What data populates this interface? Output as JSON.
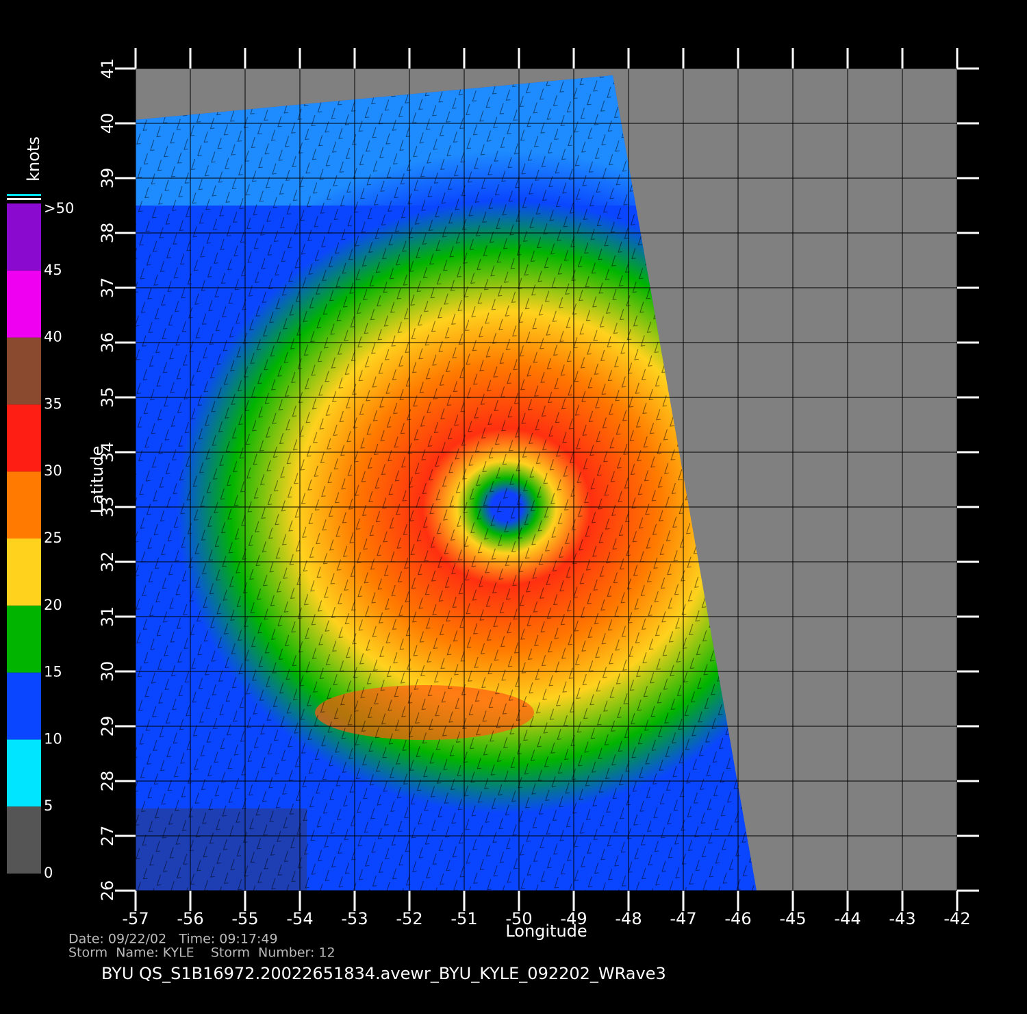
{
  "map": {
    "xlabel": "Longitude",
    "ylabel": "Latitude",
    "xlim": [
      -57,
      -42
    ],
    "ylim": [
      26,
      41
    ],
    "xticks": [
      -57,
      -56,
      -55,
      -54,
      -53,
      -52,
      -51,
      -50,
      -49,
      -48,
      -47,
      -46,
      -45,
      -44,
      -43,
      -42
    ],
    "yticks": [
      26,
      27,
      28,
      29,
      30,
      31,
      32,
      33,
      34,
      35,
      36,
      37,
      38,
      39,
      40,
      41
    ]
  },
  "colorbar": {
    "unit": "knots",
    "range": [
      0,
      50
    ],
    "ticks": [
      0,
      5,
      10,
      15,
      20,
      25,
      30,
      35,
      40,
      45,
      {
        "value": 50,
        "label": ">50"
      }
    ],
    "colors": [
      "#555555",
      "#00e5ff",
      "#0a46ff",
      "#00b400",
      "#ffd21e",
      "#ff7a00",
      "#ff1e14",
      "#8a4a30",
      "#f000f0",
      "#8a0ad0"
    ]
  },
  "footer": {
    "date_line": "Date: 09/22/02   Time: 09:17:49",
    "storm_line": "Storm  Name: KYLE    Storm  Number: 12",
    "title": "BYU  QS_S1B16972.20022651834.avewr_BYU_KYLE_092202_WRave3"
  }
}
